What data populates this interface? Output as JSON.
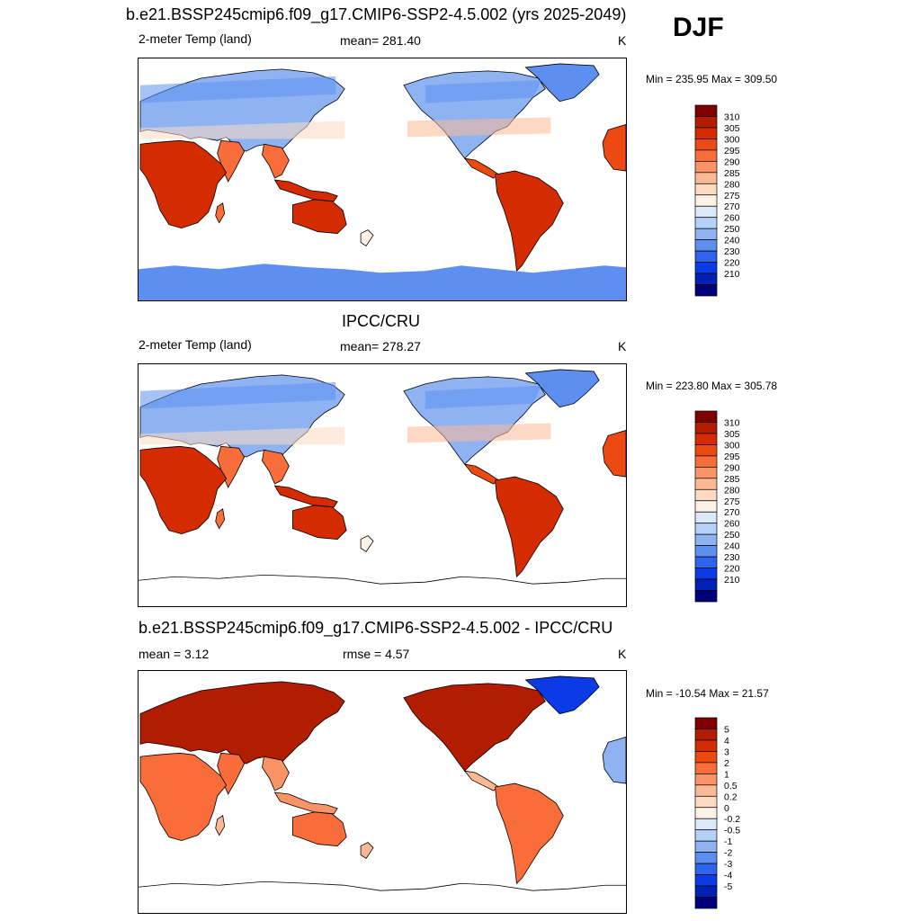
{
  "main_title": "b.e21.BSSP245cmip6.f09_g17.CMIP6-SSP2-4.5.002 (yrs 2025-2049)",
  "season": "DJF",
  "panels": [
    {
      "title": "",
      "left_label": "2-meter Temp (land)",
      "center_label": "mean= 281.40",
      "units": "K",
      "minmax": "Min = 235.95 Max = 309.50",
      "palette": "temp",
      "antarctica": "cold"
    },
    {
      "title": "IPCC/CRU",
      "left_label": "2-meter Temp (land)",
      "center_label": "mean= 278.27",
      "units": "K",
      "minmax": "Min = 223.80 Max = 305.78",
      "palette": "temp",
      "antarctica": "none"
    },
    {
      "title": "b.e21.BSSP245cmip6.f09_g17.CMIP6-SSP2-4.5.002 - IPCC/CRU",
      "left_label": "mean =   3.12",
      "center_label": "rmse =   4.57",
      "units": "K",
      "minmax": "Min = -10.54 Max =  21.57",
      "palette": "diff",
      "antarctica": "none"
    }
  ],
  "colorbars": {
    "temp": {
      "labels": [
        "310",
        "305",
        "300",
        "295",
        "290",
        "285",
        "280",
        "275",
        "270",
        "260",
        "250",
        "240",
        "230",
        "220",
        "210"
      ],
      "colors": [
        "#7f0000",
        "#b21c00",
        "#d42c00",
        "#ec4a10",
        "#f86d3a",
        "#fa9466",
        "#fbb894",
        "#fddbc3",
        "#fef2e6",
        "#dbe9fb",
        "#b6d1f8",
        "#8fb3f2",
        "#5d8ff0",
        "#2e63ee",
        "#0a3be6",
        "#0021b4",
        "#00007a"
      ]
    },
    "diff": {
      "labels": [
        "5",
        "4",
        "3",
        "2",
        "1",
        "0.5",
        "0.2",
        "0",
        "-0.2",
        "-0.5",
        "-1",
        "-2",
        "-3",
        "-4",
        "-5"
      ],
      "colors": [
        "#7f0000",
        "#b21c00",
        "#d42c00",
        "#ec4a10",
        "#f86d3a",
        "#fa9466",
        "#fbb894",
        "#fddbc3",
        "#fef2e6",
        "#dbe9fb",
        "#b6d1f8",
        "#8fb3f2",
        "#5d8ff0",
        "#2e63ee",
        "#0a3be6",
        "#0021b4",
        "#00007a"
      ]
    }
  },
  "chart_data": [
    {
      "type": "heatmap",
      "title": "b.e21.BSSP245cmip6.f09_g17.CMIP6-SSP2-4.5.002 (yrs 2025-2049)",
      "subtitle": "2-meter Temp (land)",
      "units": "K",
      "mean": 281.4,
      "min": 235.95,
      "max": 309.5,
      "levels": [
        210,
        220,
        230,
        240,
        250,
        260,
        270,
        275,
        280,
        285,
        290,
        295,
        300,
        305,
        310
      ]
    },
    {
      "type": "heatmap",
      "title": "IPCC/CRU",
      "subtitle": "2-meter Temp (land)",
      "units": "K",
      "mean": 278.27,
      "min": 223.8,
      "max": 305.78,
      "levels": [
        210,
        220,
        230,
        240,
        250,
        260,
        270,
        275,
        280,
        285,
        290,
        295,
        300,
        305,
        310
      ]
    },
    {
      "type": "heatmap",
      "title": "b.e21.BSSP245cmip6.f09_g17.CMIP6-SSP2-4.5.002 - IPCC/CRU",
      "units": "K",
      "mean": 3.12,
      "rmse": 4.57,
      "min": -10.54,
      "max": 21.57,
      "levels": [
        -5,
        -4,
        -3,
        -2,
        -1,
        -0.5,
        -0.2,
        0,
        0.2,
        0.5,
        1,
        2,
        3,
        4,
        5
      ]
    }
  ]
}
